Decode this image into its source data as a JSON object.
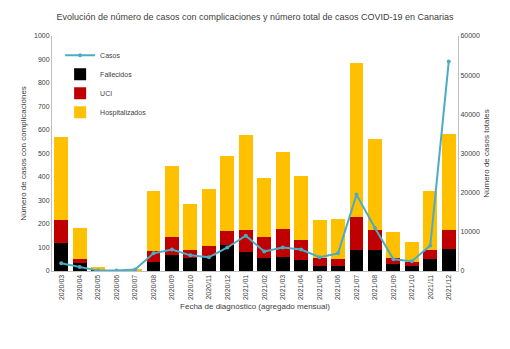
{
  "chart_data": {
    "type": "bar",
    "title": "Evolución de número de casos con complicaciones y número total de casos COVID-19 en Canarias",
    "x_label": "Fecha de diagnóstico (agregado mensual)",
    "y_label": "Número de casos con complicaciones",
    "y2_label": "Número de casos totales",
    "categories": [
      "2020/03",
      "2020/04",
      "2020/05",
      "2020/06",
      "2020/07",
      "2020/08",
      "2020/09",
      "2020/10",
      "2020/11",
      "2020/12",
      "2021/01",
      "2021/02",
      "2021/03",
      "2021/04",
      "2021/05",
      "2021/06",
      "2021/07",
      "2021/08",
      "2021/09",
      "2021/10",
      "2021/11",
      "2021/12"
    ],
    "stacked": true,
    "grid": false,
    "legend": "top-left",
    "ylim": [
      0,
      1000
    ],
    "yticks": [
      0,
      100,
      200,
      300,
      400,
      500,
      600,
      700,
      800,
      900,
      1000
    ],
    "y2lim": [
      0,
      60000
    ],
    "y2ticks": [
      0,
      10000,
      20000,
      30000,
      40000,
      50000,
      60000
    ],
    "series": [
      {
        "name": "Hospitalizados",
        "type": "bar",
        "color": "#ffc000",
        "values": [
          355,
          135,
          7,
          2,
          4,
          255,
          300,
          195,
          245,
          320,
          405,
          250,
          325,
          275,
          160,
          170,
          655,
          385,
          110,
          85,
          250,
          410
        ]
      },
      {
        "name": "UCI",
        "type": "bar",
        "color": "#c00000",
        "values": [
          95,
          15,
          3,
          0,
          1,
          45,
          75,
          35,
          40,
          60,
          95,
          90,
          120,
          85,
          35,
          30,
          140,
          85,
          25,
          20,
          40,
          80
        ]
      },
      {
        "name": "Fallecidos",
        "type": "bar",
        "color": "#000000",
        "values": [
          120,
          35,
          5,
          0,
          0,
          40,
          70,
          55,
          65,
          110,
          80,
          55,
          60,
          45,
          20,
          20,
          90,
          90,
          30,
          20,
          50,
          95
        ]
      },
      {
        "name": "Casos",
        "type": "line",
        "axis": "y2",
        "color": "#4bacc6",
        "marker": "circle",
        "values": [
          2000,
          1000,
          100,
          100,
          400,
          4500,
          5500,
          4000,
          3500,
          6000,
          9000,
          5000,
          6000,
          5500,
          3500,
          4500,
          19500,
          11000,
          3000,
          2500,
          6500,
          53500
        ]
      }
    ]
  }
}
